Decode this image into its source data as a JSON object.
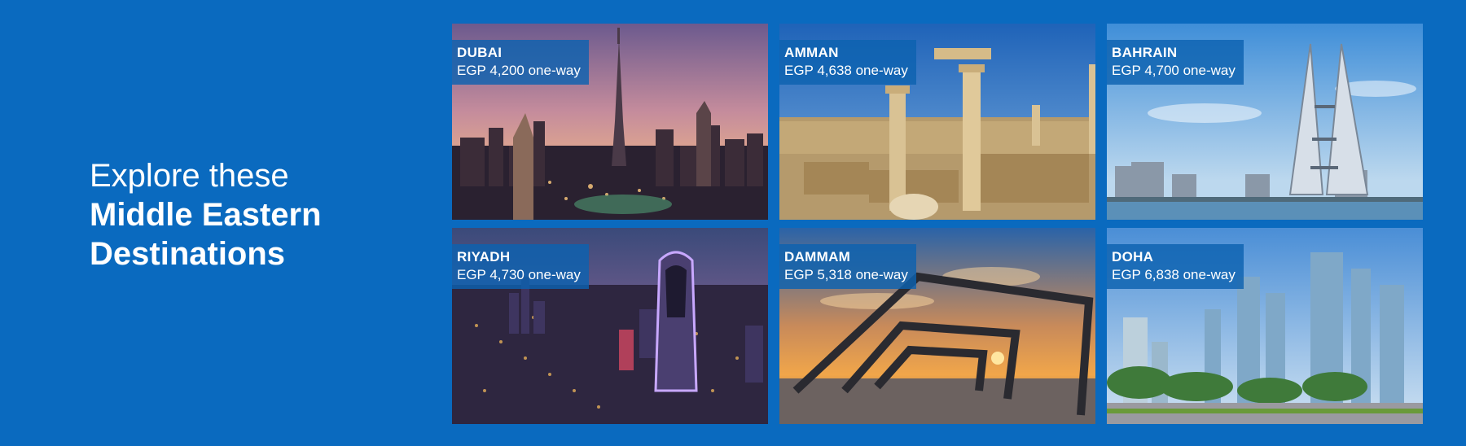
{
  "headline": {
    "line1": "Explore these",
    "line2": "Middle Eastern",
    "line3": "Destinations"
  },
  "destinations": [
    {
      "city": "DUBAI",
      "price": "EGP 4,200 one-way"
    },
    {
      "city": "AMMAN",
      "price": "EGP 4,638 one-way"
    },
    {
      "city": "BAHRAIN",
      "price": "EGP 4,700 one-way"
    },
    {
      "city": "RIYADH",
      "price": "EGP 4,730 one-way"
    },
    {
      "city": "DAMMAM",
      "price": "EGP 5,318 one-way"
    },
    {
      "city": "DOHA",
      "price": "EGP 6,838 one-way"
    }
  ],
  "colors": {
    "background": "#0a6abf",
    "caption_bg": "#0c62b0",
    "text": "#ffffff"
  }
}
